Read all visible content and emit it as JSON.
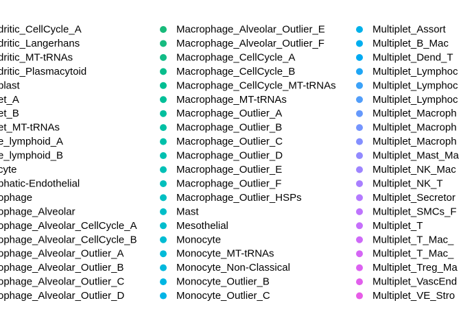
{
  "chart_data": {
    "type": "legend",
    "columns": [
      {
        "entries": [
          {
            "label": "dritic_CellCycle_A",
            "color": null
          },
          {
            "label": "dritic_Langerhans",
            "color": null
          },
          {
            "label": "dritic_MT-tRNAs",
            "color": null
          },
          {
            "label": "dritic_Plasmacytoid",
            "color": null
          },
          {
            "label": "blast",
            "color": null
          },
          {
            "label": "et_A",
            "color": null
          },
          {
            "label": "et_B",
            "color": null
          },
          {
            "label": "et_MT-tRNAs",
            "color": null
          },
          {
            "label": "e_lymphoid_A",
            "color": null
          },
          {
            "label": "e_lymphoid_B",
            "color": null
          },
          {
            "label": "cyte",
            "color": null
          },
          {
            "label": "phatic-Endothelial",
            "color": null
          },
          {
            "label": "ophage",
            "color": null
          },
          {
            "label": "ophage_Alveolar",
            "color": null
          },
          {
            "label": "ophage_Alveolar_CellCycle_A",
            "color": null
          },
          {
            "label": "ophage_Alveolar_CellCycle_B",
            "color": null
          },
          {
            "label": "ophage_Alveolar_Outlier_A",
            "color": null
          },
          {
            "label": "ophage_Alveolar_Outlier_B",
            "color": null
          },
          {
            "label": "ophage_Alveolar_Outlier_C",
            "color": null
          },
          {
            "label": "ophage_Alveolar_Outlier_D",
            "color": null
          }
        ]
      },
      {
        "entries": [
          {
            "label": "Macrophage_Alveolar_Outlier_E",
            "color": "#17BA7A"
          },
          {
            "label": "Macrophage_Alveolar_Outlier_F",
            "color": "#17BB80"
          },
          {
            "label": "Macrophage_CellCycle_A",
            "color": "#12BC86"
          },
          {
            "label": "Macrophage_CellCycle_B",
            "color": "#0ABD8C"
          },
          {
            "label": "Macrophage_CellCycle_MT-tRNAs",
            "color": "#00BE92"
          },
          {
            "label": "Macrophage_MT-tRNAs",
            "color": "#00BF98"
          },
          {
            "label": "Macrophage_Outlier_A",
            "color": "#00BF9E"
          },
          {
            "label": "Macrophage_Outlier_B",
            "color": "#00C0A4"
          },
          {
            "label": "Macrophage_Outlier_C",
            "color": "#00C0AA"
          },
          {
            "label": "Macrophage_Outlier_D",
            "color": "#00C0B0"
          },
          {
            "label": "Macrophage_Outlier_E",
            "color": "#00C0B6"
          },
          {
            "label": "Macrophage_Outlier_F",
            "color": "#00BFBC"
          },
          {
            "label": "Macrophage_Outlier_HSPs",
            "color": "#00BFC2"
          },
          {
            "label": "Mast",
            "color": "#00BEC8"
          },
          {
            "label": "Mesothelial",
            "color": "#00BDCD"
          },
          {
            "label": "Monocyte",
            "color": "#00BCD3"
          },
          {
            "label": "Monocyte_MT-tRNAs",
            "color": "#00BAD8"
          },
          {
            "label": "Monocyte_Non-Classical",
            "color": "#00B8DD"
          },
          {
            "label": "Monocyte_Outlier_B",
            "color": "#00B6E2"
          },
          {
            "label": "Monocyte_Outlier_C",
            "color": "#00B4E6"
          }
        ]
      },
      {
        "entries": [
          {
            "label": "Multiplet_Assort",
            "color": "#00B1EA"
          },
          {
            "label": "Multiplet_B_Mac",
            "color": "#00AEEF"
          },
          {
            "label": "Multiplet_Dend_T",
            "color": "#00AAF2"
          },
          {
            "label": "Multiplet_Lymphoc",
            "color": "#1FA6F5"
          },
          {
            "label": "Multiplet_Lymphoc",
            "color": "#3CA2F8"
          },
          {
            "label": "Multiplet_Lymphoc",
            "color": "#529EFA"
          },
          {
            "label": "Multiplet_Macroph",
            "color": "#6599FC"
          },
          {
            "label": "Multiplet_Macroph",
            "color": "#7595FE"
          },
          {
            "label": "Multiplet_Macroph",
            "color": "#848FFF"
          },
          {
            "label": "Multiplet_Mast_Ma",
            "color": "#928AFF"
          },
          {
            "label": "Multiplet_NK_Mac",
            "color": "#9E85FF"
          },
          {
            "label": "Multiplet_NK_T",
            "color": "#A97FFF"
          },
          {
            "label": "Multiplet_Secretor",
            "color": "#B47AFF"
          },
          {
            "label": "Multiplet_SMCs_F",
            "color": "#BE74FD"
          },
          {
            "label": "Multiplet_T",
            "color": "#C66FFB"
          },
          {
            "label": "Multiplet_T_Mac_",
            "color": "#CE6AF8"
          },
          {
            "label": "Multiplet_T_Mac_",
            "color": "#D566F5"
          },
          {
            "label": "Multiplet_Treg_Ma",
            "color": "#DC62F1"
          },
          {
            "label": "Multiplet_VascEnd",
            "color": "#E15FEC"
          },
          {
            "label": "Multiplet_VE_Stro",
            "color": "#E75CE7"
          }
        ]
      }
    ]
  }
}
